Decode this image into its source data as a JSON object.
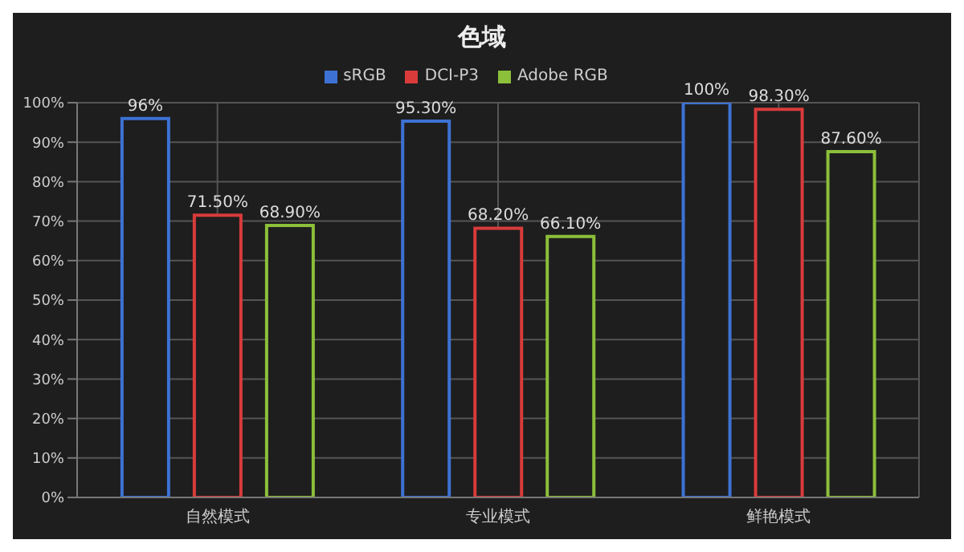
{
  "chart_data": {
    "type": "bar",
    "title": "色域",
    "categories": [
      "自然模式",
      "专业模式",
      "鲜艳模式"
    ],
    "series": [
      {
        "name": "sRGB",
        "color": "#3d72d4",
        "values": [
          96,
          95.3,
          100
        ],
        "value_labels": [
          "96%",
          "95.30%",
          "100%"
        ]
      },
      {
        "name": "DCI-P3",
        "color": "#d93b3b",
        "values": [
          71.5,
          68.2,
          98.3
        ],
        "value_labels": [
          "71.50%",
          "68.20%",
          "98.30%"
        ]
      },
      {
        "name": "Adobe RGB",
        "color": "#8cbf3a",
        "values": [
          68.9,
          66.1,
          87.6
        ],
        "value_labels": [
          "68.90%",
          "66.10%",
          "87.60%"
        ]
      }
    ],
    "ylim": [
      0,
      100
    ],
    "yticks": [
      {
        "value": 0,
        "label": "0%"
      },
      {
        "value": 10,
        "label": "10%"
      },
      {
        "value": 20,
        "label": "20%"
      },
      {
        "value": 30,
        "label": "30%"
      },
      {
        "value": 40,
        "label": "40%"
      },
      {
        "value": 50,
        "label": "50%"
      },
      {
        "value": 60,
        "label": "60%"
      },
      {
        "value": 70,
        "label": "70%"
      },
      {
        "value": 80,
        "label": "80%"
      },
      {
        "value": 90,
        "label": "90%"
      },
      {
        "value": 100,
        "label": "100%"
      }
    ],
    "grid": true,
    "legend": "top"
  }
}
